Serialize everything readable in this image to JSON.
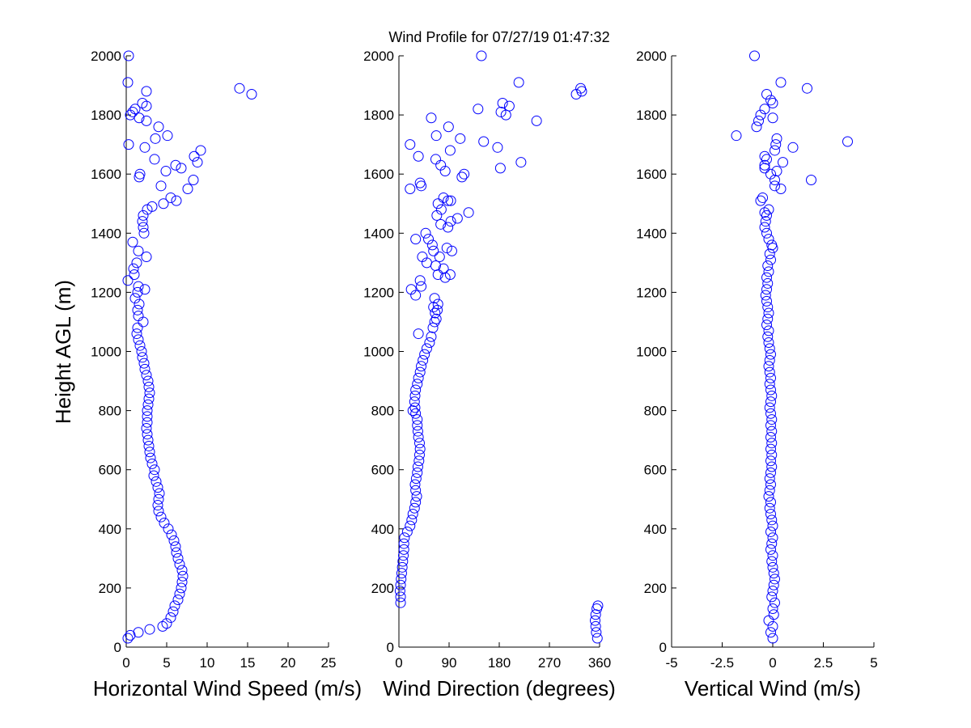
{
  "title": "Wind Profile for  07/27/19 01:47:32",
  "ylabel": "Height AGL (m)",
  "marker_color": "#0000ff",
  "chart_data": [
    {
      "type": "scatter",
      "name": "horizontal-wind-speed",
      "xlabel": "Horizontal Wind Speed (m/s)",
      "ylabel": "Height AGL (m)",
      "xlim": [
        0,
        25
      ],
      "ylim": [
        0,
        2000
      ],
      "xticks": [
        0,
        5,
        10,
        15,
        20,
        25
      ],
      "xticklabels": [
        "0",
        "5",
        "10",
        "15",
        "20",
        "25"
      ],
      "yticks": [
        0,
        200,
        400,
        600,
        800,
        1000,
        1200,
        1400,
        1600,
        1800,
        2000
      ],
      "points": [
        [
          0.2,
          30
        ],
        [
          0.5,
          40
        ],
        [
          1.5,
          50
        ],
        [
          2.9,
          60
        ],
        [
          4.5,
          70
        ],
        [
          5,
          80
        ],
        [
          5.5,
          100
        ],
        [
          5.8,
          120
        ],
        [
          6,
          140
        ],
        [
          6.4,
          160
        ],
        [
          6.6,
          180
        ],
        [
          6.8,
          200
        ],
        [
          6.9,
          220
        ],
        [
          7,
          240
        ],
        [
          6.9,
          260
        ],
        [
          6.6,
          280
        ],
        [
          6.4,
          300
        ],
        [
          6.2,
          320
        ],
        [
          6.1,
          340
        ],
        [
          5.9,
          360
        ],
        [
          5.6,
          380
        ],
        [
          5.2,
          400
        ],
        [
          4.7,
          420
        ],
        [
          4.3,
          440
        ],
        [
          4,
          460
        ],
        [
          3.9,
          480
        ],
        [
          4,
          500
        ],
        [
          4.1,
          520
        ],
        [
          3.9,
          540
        ],
        [
          3.7,
          560
        ],
        [
          3.4,
          580
        ],
        [
          3.5,
          600
        ],
        [
          3.2,
          620
        ],
        [
          3,
          640
        ],
        [
          2.9,
          660
        ],
        [
          2.8,
          680
        ],
        [
          2.7,
          700
        ],
        [
          2.6,
          720
        ],
        [
          2.5,
          740
        ],
        [
          2.6,
          760
        ],
        [
          2.6,
          780
        ],
        [
          2.6,
          800
        ],
        [
          2.7,
          820
        ],
        [
          2.8,
          840
        ],
        [
          2.9,
          860
        ],
        [
          2.8,
          880
        ],
        [
          2.7,
          900
        ],
        [
          2.5,
          920
        ],
        [
          2.3,
          940
        ],
        [
          2.2,
          960
        ],
        [
          2,
          980
        ],
        [
          1.9,
          1000
        ],
        [
          1.7,
          1020
        ],
        [
          1.5,
          1040
        ],
        [
          1.3,
          1060
        ],
        [
          1.4,
          1080
        ],
        [
          2.1,
          1100
        ],
        [
          1.5,
          1120
        ],
        [
          1.4,
          1140
        ],
        [
          1.6,
          1160
        ],
        [
          1.1,
          1180
        ],
        [
          1.4,
          1200
        ],
        [
          2.3,
          1210
        ],
        [
          1.5,
          1220
        ],
        [
          0.2,
          1240
        ],
        [
          1,
          1260
        ],
        [
          0.9,
          1280
        ],
        [
          1.3,
          1300
        ],
        [
          2.5,
          1320
        ],
        [
          1.5,
          1340
        ],
        [
          0.8,
          1370
        ],
        [
          2.2,
          1400
        ],
        [
          2.1,
          1420
        ],
        [
          2,
          1440
        ],
        [
          2.1,
          1460
        ],
        [
          2.6,
          1480
        ],
        [
          3.2,
          1490
        ],
        [
          4.6,
          1500
        ],
        [
          6.2,
          1510
        ],
        [
          5.5,
          1520
        ],
        [
          7.6,
          1550
        ],
        [
          4.3,
          1560
        ],
        [
          8.3,
          1580
        ],
        [
          1.6,
          1590
        ],
        [
          1.7,
          1600
        ],
        [
          4.9,
          1610
        ],
        [
          6.8,
          1620
        ],
        [
          6.1,
          1630
        ],
        [
          8.8,
          1640
        ],
        [
          3.5,
          1650
        ],
        [
          8.4,
          1660
        ],
        [
          9.2,
          1680
        ],
        [
          2.3,
          1690
        ],
        [
          0.3,
          1700
        ],
        [
          3.6,
          1720
        ],
        [
          5.1,
          1730
        ],
        [
          4,
          1760
        ],
        [
          2.5,
          1780
        ],
        [
          0.5,
          1800
        ],
        [
          1.6,
          1790
        ],
        [
          1.1,
          1820
        ],
        [
          0.8,
          1810
        ],
        [
          2.5,
          1830
        ],
        [
          2,
          1840
        ],
        [
          2.5,
          1880
        ],
        [
          14,
          1890
        ],
        [
          15.5,
          1870
        ],
        [
          0.2,
          1910
        ],
        [
          0.3,
          2000
        ]
      ]
    },
    {
      "type": "scatter",
      "name": "wind-direction",
      "xlabel": "Wind Direction (degrees)",
      "ylabel": "",
      "xlim": [
        0,
        360
      ],
      "ylim": [
        0,
        2000
      ],
      "xticks": [
        0,
        90,
        180,
        270,
        360
      ],
      "xticklabels": [
        "0",
        "90",
        "180",
        "270",
        "360"
      ],
      "yticks": [
        0,
        200,
        400,
        600,
        800,
        1000,
        1200,
        1400,
        1600,
        1800,
        2000
      ],
      "points": [
        [
          356,
          30
        ],
        [
          354,
          50
        ],
        [
          353,
          70
        ],
        [
          352,
          90
        ],
        [
          353,
          110
        ],
        [
          355,
          130
        ],
        [
          357,
          140
        ],
        [
          3,
          150
        ],
        [
          3,
          170
        ],
        [
          2,
          190
        ],
        [
          3,
          210
        ],
        [
          4,
          230
        ],
        [
          5,
          250
        ],
        [
          6,
          270
        ],
        [
          7,
          290
        ],
        [
          8,
          310
        ],
        [
          9,
          330
        ],
        [
          9,
          350
        ],
        [
          10,
          370
        ],
        [
          15,
          390
        ],
        [
          20,
          410
        ],
        [
          23,
          430
        ],
        [
          25,
          450
        ],
        [
          28,
          470
        ],
        [
          30,
          490
        ],
        [
          32,
          510
        ],
        [
          30,
          530
        ],
        [
          29,
          550
        ],
        [
          31,
          570
        ],
        [
          33,
          590
        ],
        [
          34,
          610
        ],
        [
          36,
          630
        ],
        [
          37,
          650
        ],
        [
          38,
          670
        ],
        [
          37,
          690
        ],
        [
          35,
          710
        ],
        [
          34,
          730
        ],
        [
          33,
          750
        ],
        [
          33,
          770
        ],
        [
          30,
          790
        ],
        [
          25,
          800
        ],
        [
          29,
          810
        ],
        [
          28,
          830
        ],
        [
          29,
          850
        ],
        [
          30,
          870
        ],
        [
          33,
          890
        ],
        [
          35,
          910
        ],
        [
          38,
          930
        ],
        [
          40,
          950
        ],
        [
          43,
          970
        ],
        [
          46,
          990
        ],
        [
          50,
          1010
        ],
        [
          55,
          1030
        ],
        [
          58,
          1050
        ],
        [
          35,
          1060
        ],
        [
          61,
          1080
        ],
        [
          64,
          1100
        ],
        [
          67,
          1110
        ],
        [
          65,
          1130
        ],
        [
          69,
          1140
        ],
        [
          62,
          1150
        ],
        [
          70,
          1160
        ],
        [
          64,
          1180
        ],
        [
          30,
          1190
        ],
        [
          22,
          1210
        ],
        [
          40,
          1220
        ],
        [
          38,
          1240
        ],
        [
          83,
          1250
        ],
        [
          70,
          1260
        ],
        [
          92,
          1260
        ],
        [
          80,
          1280
        ],
        [
          66,
          1290
        ],
        [
          50,
          1300
        ],
        [
          73,
          1320
        ],
        [
          42,
          1320
        ],
        [
          62,
          1340
        ],
        [
          95,
          1340
        ],
        [
          86,
          1350
        ],
        [
          60,
          1360
        ],
        [
          53,
          1380
        ],
        [
          30,
          1380
        ],
        [
          48,
          1400
        ],
        [
          88,
          1420
        ],
        [
          75,
          1430
        ],
        [
          93,
          1440
        ],
        [
          105,
          1450
        ],
        [
          68,
          1460
        ],
        [
          125,
          1470
        ],
        [
          76,
          1480
        ],
        [
          70,
          1500
        ],
        [
          88,
          1510
        ],
        [
          93,
          1510
        ],
        [
          80,
          1520
        ],
        [
          20,
          1550
        ],
        [
          40,
          1560
        ],
        [
          38,
          1570
        ],
        [
          113,
          1590
        ],
        [
          117,
          1600
        ],
        [
          83,
          1610
        ],
        [
          182,
          1620
        ],
        [
          75,
          1630
        ],
        [
          219,
          1640
        ],
        [
          66,
          1650
        ],
        [
          35,
          1660
        ],
        [
          92,
          1680
        ],
        [
          177,
          1690
        ],
        [
          20,
          1700
        ],
        [
          152,
          1710
        ],
        [
          110,
          1720
        ],
        [
          67,
          1730
        ],
        [
          89,
          1760
        ],
        [
          247,
          1780
        ],
        [
          58,
          1790
        ],
        [
          192,
          1800
        ],
        [
          183,
          1810
        ],
        [
          142,
          1820
        ],
        [
          198,
          1830
        ],
        [
          186,
          1840
        ],
        [
          318,
          1870
        ],
        [
          328,
          1880
        ],
        [
          326,
          1890
        ],
        [
          215,
          1910
        ],
        [
          148,
          2000
        ]
      ]
    },
    {
      "type": "scatter",
      "name": "vertical-wind",
      "xlabel": "Vertical Wind (m/s)",
      "ylabel": "",
      "xlim": [
        -5,
        5
      ],
      "ylim": [
        0,
        2000
      ],
      "xticks": [
        -5,
        -2.5,
        0,
        2.5,
        5
      ],
      "xticklabels": [
        "-5",
        "-2.5",
        "0",
        "2.5",
        "5"
      ],
      "yticks": [
        0,
        200,
        400,
        600,
        800,
        1000,
        1200,
        1400,
        1600,
        1800,
        2000
      ],
      "points": [
        [
          0,
          30
        ],
        [
          -0.1,
          50
        ],
        [
          0,
          70
        ],
        [
          -0.2,
          90
        ],
        [
          0.05,
          110
        ],
        [
          0,
          130
        ],
        [
          0.1,
          150
        ],
        [
          -0.05,
          170
        ],
        [
          0,
          190
        ],
        [
          0.05,
          210
        ],
        [
          0.1,
          230
        ],
        [
          0.05,
          250
        ],
        [
          0,
          270
        ],
        [
          -0.05,
          290
        ],
        [
          0,
          310
        ],
        [
          -0.1,
          330
        ],
        [
          -0.05,
          350
        ],
        [
          0,
          370
        ],
        [
          -0.1,
          390
        ],
        [
          0,
          410
        ],
        [
          -0.05,
          430
        ],
        [
          -0.1,
          450
        ],
        [
          -0.15,
          470
        ],
        [
          -0.1,
          490
        ],
        [
          -0.2,
          510
        ],
        [
          -0.15,
          530
        ],
        [
          -0.1,
          550
        ],
        [
          -0.15,
          570
        ],
        [
          -0.1,
          590
        ],
        [
          -0.05,
          610
        ],
        [
          -0.1,
          630
        ],
        [
          -0.05,
          650
        ],
        [
          -0.1,
          670
        ],
        [
          -0.05,
          690
        ],
        [
          -0.1,
          710
        ],
        [
          -0.05,
          730
        ],
        [
          -0.1,
          750
        ],
        [
          -0.05,
          770
        ],
        [
          -0.1,
          790
        ],
        [
          -0.15,
          810
        ],
        [
          -0.1,
          830
        ],
        [
          -0.05,
          850
        ],
        [
          -0.1,
          870
        ],
        [
          -0.15,
          890
        ],
        [
          -0.1,
          910
        ],
        [
          -0.15,
          930
        ],
        [
          -0.2,
          950
        ],
        [
          -0.15,
          970
        ],
        [
          -0.1,
          990
        ],
        [
          -0.15,
          1010
        ],
        [
          -0.2,
          1030
        ],
        [
          -0.25,
          1050
        ],
        [
          -0.2,
          1070
        ],
        [
          -0.3,
          1090
        ],
        [
          -0.25,
          1110
        ],
        [
          -0.2,
          1130
        ],
        [
          -0.25,
          1150
        ],
        [
          -0.3,
          1170
        ],
        [
          -0.35,
          1190
        ],
        [
          -0.3,
          1210
        ],
        [
          -0.25,
          1230
        ],
        [
          -0.3,
          1250
        ],
        [
          -0.2,
          1270
        ],
        [
          -0.25,
          1290
        ],
        [
          -0.1,
          1310
        ],
        [
          -0.15,
          1330
        ],
        [
          0,
          1350
        ],
        [
          -0.05,
          1360
        ],
        [
          -0.2,
          1380
        ],
        [
          -0.3,
          1400
        ],
        [
          -0.4,
          1420
        ],
        [
          -0.35,
          1440
        ],
        [
          -0.3,
          1460
        ],
        [
          -0.4,
          1470
        ],
        [
          -0.2,
          1480
        ],
        [
          -0.6,
          1510
        ],
        [
          -0.5,
          1520
        ],
        [
          0.4,
          1550
        ],
        [
          0.1,
          1560
        ],
        [
          0.1,
          1580
        ],
        [
          1.9,
          1580
        ],
        [
          -0.1,
          1600
        ],
        [
          0.2,
          1610
        ],
        [
          -0.4,
          1620
        ],
        [
          -0.4,
          1630
        ],
        [
          0.5,
          1640
        ],
        [
          -0.3,
          1650
        ],
        [
          -0.4,
          1660
        ],
        [
          0.1,
          1680
        ],
        [
          1,
          1690
        ],
        [
          0.15,
          1700
        ],
        [
          3.7,
          1710
        ],
        [
          0.2,
          1720
        ],
        [
          -1.8,
          1730
        ],
        [
          -0.8,
          1760
        ],
        [
          -0.7,
          1780
        ],
        [
          0,
          1790
        ],
        [
          -0.6,
          1800
        ],
        [
          -0.4,
          1820
        ],
        [
          0,
          1840
        ],
        [
          -0.1,
          1850
        ],
        [
          -0.3,
          1870
        ],
        [
          1.7,
          1890
        ],
        [
          0.4,
          1910
        ],
        [
          -0.9,
          2000
        ]
      ]
    }
  ]
}
